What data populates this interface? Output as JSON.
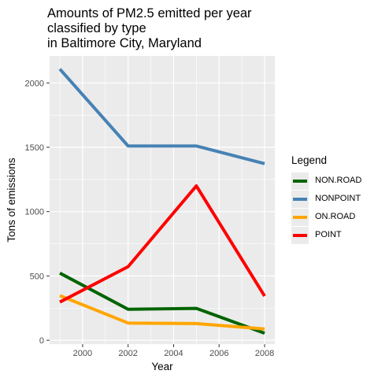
{
  "chart_data": {
    "type": "line",
    "title": [
      "Amounts of PM2.5 emitted per year",
      "classified by type",
      "in Baltimore City, Maryland"
    ],
    "xlabel": "Year",
    "ylabel": "Tons of emissions",
    "x": [
      1999,
      2002,
      2005,
      2008
    ],
    "xlim": [
      1998.55,
      2008.45
    ],
    "ylim": [
      -30,
      2210
    ],
    "xticks": [
      2000,
      2002,
      2004,
      2006,
      2008
    ],
    "yticks": [
      0,
      500,
      1000,
      1500,
      2000
    ],
    "grid": true,
    "legend_title": "Legend",
    "legend_position": "right",
    "series": [
      {
        "name": "NON.ROAD",
        "color": "#006400",
        "values": [
          522,
          241,
          248,
          55
        ]
      },
      {
        "name": "NONPOINT",
        "color": "#4682b4",
        "values": [
          2108,
          1510,
          1510,
          1373
        ]
      },
      {
        "name": "ON.ROAD",
        "color": "#ffa500",
        "values": [
          347,
          134,
          130,
          88
        ]
      },
      {
        "name": "POINT",
        "color": "#ff0000",
        "values": [
          297,
          572,
          1200,
          344
        ]
      }
    ],
    "colors": {
      "panel": "#ebebeb",
      "grid": "#ffffff",
      "axis_text": "#4d4d4d"
    }
  }
}
